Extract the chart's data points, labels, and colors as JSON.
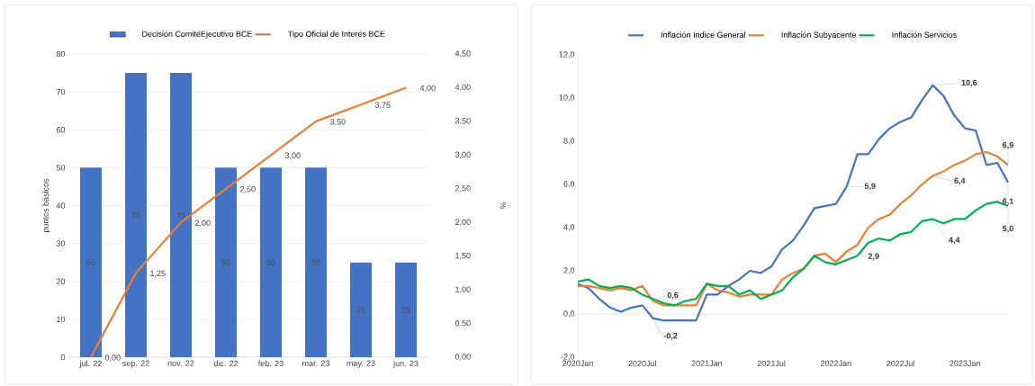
{
  "chart_data": [
    {
      "type": "bar",
      "ylabel": "puntos básicos",
      "y2label": "%",
      "categories": [
        "jul. 22",
        "sep. 22",
        "nov. 22",
        "dic. 22",
        "feb. 23",
        "mar. 23",
        "may. 23",
        "jun. 23"
      ],
      "series": [
        {
          "name": "Decisión ComitéEjecutivo BCE",
          "type": "bar",
          "color": "#4472c4",
          "values": [
            50,
            75,
            75,
            50,
            50,
            50,
            25,
            25
          ],
          "value_labels": [
            "50",
            "75",
            "75",
            "50",
            "50",
            "50",
            "25",
            "25"
          ]
        },
        {
          "name": "Tipo Oficial de Interés BCE",
          "type": "line",
          "axis": "y2",
          "color": "#ed7d31",
          "values": [
            0,
            1.25,
            2,
            2.5,
            3,
            3.5,
            3.75,
            4
          ],
          "value_labels": [
            "0,00",
            "1,25",
            "2,00",
            "2,50",
            "3,00",
            "3,50",
            "3,75",
            "4,00"
          ]
        }
      ],
      "ylim": [
        0,
        80
      ],
      "yticks": [
        0,
        10,
        20,
        30,
        40,
        50,
        60,
        70,
        80
      ],
      "y2lim": [
        0,
        4.5
      ],
      "y2ticks": [
        {
          "value": 0,
          "label": "0,00"
        },
        {
          "value": 0.5,
          "label": "0,50"
        },
        {
          "value": 1,
          "label": "1,00"
        },
        {
          "value": 1.5,
          "label": "1,50"
        },
        {
          "value": 2,
          "label": "2,00"
        },
        {
          "value": 2.5,
          "label": "2,50"
        },
        {
          "value": 3,
          "label": "3,00"
        },
        {
          "value": 3.5,
          "label": "3,50"
        },
        {
          "value": 4,
          "label": "4,00"
        },
        {
          "value": 4.5,
          "label": "4,50"
        }
      ],
      "grid": "y",
      "legend": "top"
    },
    {
      "type": "line",
      "x": [
        "2020-01",
        "2020-02",
        "2020-03",
        "2020-04",
        "2020-05",
        "2020-06",
        "2020-07",
        "2020-08",
        "2020-09",
        "2020-10",
        "2020-11",
        "2020-12",
        "2021-01",
        "2021-02",
        "2021-03",
        "2021-04",
        "2021-05",
        "2021-06",
        "2021-07",
        "2021-08",
        "2021-09",
        "2021-10",
        "2021-11",
        "2021-12",
        "2022-01",
        "2022-02",
        "2022-03",
        "2022-04",
        "2022-05",
        "2022-06",
        "2022-07",
        "2022-08",
        "2022-09",
        "2022-10",
        "2022-11",
        "2022-12",
        "2023-01",
        "2023-02",
        "2023-03",
        "2023-04",
        "2023-05"
      ],
      "series": [
        {
          "name": "Inflación Indice General",
          "color": "#4472c4",
          "values": [
            1.4,
            1.2,
            0.7,
            0.3,
            0.1,
            0.3,
            0.4,
            -0.2,
            -0.3,
            -0.3,
            -0.3,
            -0.3,
            0.9,
            0.9,
            1.3,
            1.6,
            2.0,
            1.9,
            2.2,
            3.0,
            3.4,
            4.1,
            4.9,
            5.0,
            5.1,
            5.9,
            7.4,
            7.4,
            8.1,
            8.6,
            8.9,
            9.1,
            9.9,
            10.6,
            10.1,
            9.2,
            8.6,
            8.5,
            6.9,
            7.0,
            6.1
          ]
        },
        {
          "name": "Inflación Subyacente",
          "color": "#ed7d31",
          "values": [
            1.3,
            1.3,
            1.2,
            1.1,
            1.2,
            1.1,
            1.3,
            0.6,
            0.4,
            0.4,
            0.4,
            0.4,
            1.4,
            1.1,
            1.0,
            0.8,
            0.9,
            0.9,
            0.9,
            1.6,
            1.9,
            2.1,
            2.7,
            2.8,
            2.4,
            2.9,
            3.2,
            4.0,
            4.4,
            4.6,
            5.1,
            5.5,
            6.0,
            6.4,
            6.6,
            6.9,
            7.1,
            7.4,
            7.5,
            7.3,
            6.9
          ]
        },
        {
          "name": "Inflación Servicios",
          "color": "#00b050",
          "values": [
            1.5,
            1.6,
            1.3,
            1.2,
            1.3,
            1.2,
            0.9,
            0.7,
            0.5,
            0.4,
            0.6,
            0.7,
            1.4,
            1.3,
            1.3,
            0.9,
            1.1,
            0.7,
            0.9,
            1.1,
            1.7,
            2.1,
            2.7,
            2.4,
            2.3,
            2.5,
            2.7,
            3.3,
            3.5,
            3.4,
            3.7,
            3.8,
            4.3,
            4.4,
            4.2,
            4.4,
            4.4,
            4.8,
            5.1,
            5.2,
            5.0
          ]
        }
      ],
      "xlim": [
        "2020-01",
        "2023-05"
      ],
      "xticks": [
        {
          "value": "2020-01",
          "label": "2020Jan"
        },
        {
          "value": "2020-07",
          "label": "2020Jul"
        },
        {
          "value": "2021-01",
          "label": "2021Jan"
        },
        {
          "value": "2021-07",
          "label": "2021Jul"
        },
        {
          "value": "2022-01",
          "label": "2022Jan"
        },
        {
          "value": "2022-07",
          "label": "2022Jul"
        },
        {
          "value": "2023-01",
          "label": "2023Jan"
        }
      ],
      "ylim": [
        -2,
        12
      ],
      "yticks": [
        {
          "value": -2,
          "label": "-2,0"
        },
        {
          "value": 0,
          "label": "0,0"
        },
        {
          "value": 2,
          "label": "2,0"
        },
        {
          "value": 4,
          "label": "4,0"
        },
        {
          "value": 6,
          "label": "6,0"
        },
        {
          "value": 8,
          "label": "8,0"
        },
        {
          "value": 10,
          "label": "10,0"
        },
        {
          "value": 12,
          "label": "12,0"
        }
      ],
      "annotations": [
        {
          "text": "10,6",
          "x": "2022-10",
          "y": 10.6
        },
        {
          "text": "5,9",
          "x": "2022-02",
          "y": 5.9
        },
        {
          "text": "6,4",
          "x": "2022-10",
          "y": 6.4
        },
        {
          "text": "6,9",
          "x": "2023-05",
          "y": 6.9
        },
        {
          "text": "6,1",
          "x": "2023-05",
          "y": 6.1
        },
        {
          "text": "5,0",
          "x": "2023-05",
          "y": 5.0
        },
        {
          "text": "4,4",
          "x": "2022-10",
          "y": 4.4
        },
        {
          "text": "2,9",
          "x": "2022-02",
          "y": 2.9
        },
        {
          "text": "0,6",
          "x": "2020-08",
          "y": 0.6
        },
        {
          "text": "-0,2",
          "x": "2020-08",
          "y": -0.2
        }
      ],
      "ref_lines": [
        {
          "axis": "y",
          "value": 0,
          "color": "#bfbfbf"
        }
      ],
      "grid": false,
      "legend": "top"
    }
  ]
}
